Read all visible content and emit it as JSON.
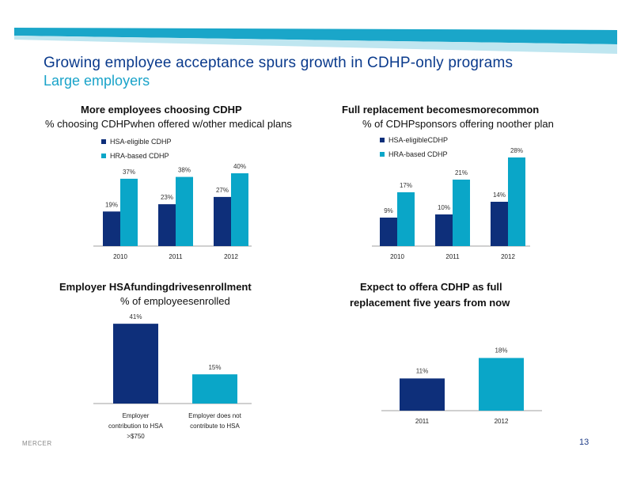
{
  "header": {
    "title": "Growing employee acceptance spurs growth in CDHP-only programs",
    "subtitle": "Large employers"
  },
  "colors": {
    "dark": "#0e2f7a",
    "light": "#0aa6c8",
    "band": "#1aa6c9",
    "band_light": "#bfe6f0"
  },
  "panels": {
    "p1": {
      "title": "More   employees   choosing   CDHP",
      "subtitle": "% choosing CDHPwhen offered w/other medical plans"
    },
    "p2": {
      "title": "Full  replacement  becomesmorecommon",
      "subtitle": "% of CDHPsponsors offering noother plan"
    },
    "p3": {
      "title": "Employer   HSAfundingdrivesenrollment",
      "subtitle": "% of employeesenrolled"
    },
    "p4": {
      "title_line1": "Expect   to  offera  CDHP   as  full",
      "title_line2": "replacement   five  years  from  now"
    }
  },
  "footer": {
    "brand": "MERCER",
    "page": "13"
  },
  "chart_data": [
    {
      "type": "bar",
      "categories": [
        "2010",
        "2011",
        "2012"
      ],
      "series": [
        {
          "name": "HSA-eligible CDHP",
          "values": [
            19,
            23,
            27
          ],
          "labels": [
            "19%",
            "23%",
            "27%"
          ]
        },
        {
          "name": "HRA-based CDHP",
          "values": [
            37,
            38,
            40
          ],
          "labels": [
            "37%",
            "38%",
            "40%"
          ]
        }
      ],
      "legend": "top-left",
      "ylim": [
        0,
        50
      ]
    },
    {
      "type": "bar",
      "categories": [
        "2010",
        "2011",
        "2012"
      ],
      "series": [
        {
          "name": "HSA-eligibleCDHP",
          "values": [
            9,
            10,
            14
          ],
          "labels": [
            "9%",
            "10%",
            "14%"
          ]
        },
        {
          "name": "HRA-based CDHP",
          "values": [
            17,
            21,
            28
          ],
          "labels": [
            "17%",
            "21%",
            "28%"
          ]
        }
      ],
      "legend": "top-left",
      "ylim": [
        0,
        35
      ]
    },
    {
      "type": "bar",
      "categories": [
        [
          "Employer",
          "contribution to HSA",
          ">$750"
        ],
        [
          "Employer does not",
          "contribute to HSA"
        ]
      ],
      "values": [
        41,
        15
      ],
      "labels": [
        "41%",
        "15%"
      ],
      "colors": [
        "#0e2f7a",
        "#0aa6c8"
      ],
      "ylim": [
        0,
        50
      ]
    },
    {
      "type": "bar",
      "categories": [
        "2011",
        "2012"
      ],
      "values": [
        11,
        18
      ],
      "labels": [
        "11%",
        "18%"
      ],
      "colors": [
        "#0e2f7a",
        "#0aa6c8"
      ],
      "ylim": [
        0,
        30
      ]
    }
  ]
}
